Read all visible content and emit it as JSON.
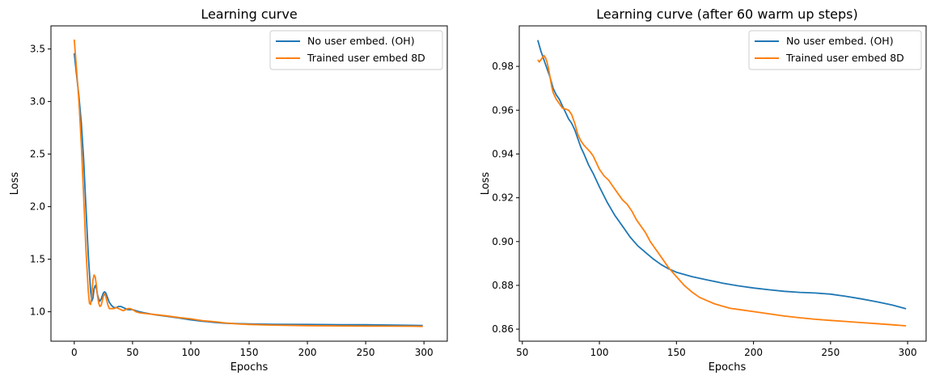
{
  "chart_data": [
    {
      "type": "line",
      "title": "Learning curve",
      "xlabel": "Epochs",
      "ylabel": "Loss",
      "xlim": [
        -20,
        320
      ],
      "ylim": [
        0.72,
        3.72
      ],
      "xticks": [
        0,
        50,
        100,
        150,
        200,
        250,
        300
      ],
      "yticks": [
        1.0,
        1.5,
        2.0,
        2.5,
        3.0,
        3.5
      ],
      "ytick_decimals": 1,
      "legend": "top-right",
      "grid": false,
      "series": [
        {
          "name": "No user embed. (OH)",
          "color": "#1f77b4",
          "points": [
            [
              0,
              3.46
            ],
            [
              2,
              3.25
            ],
            [
              4,
              3.05
            ],
            [
              6,
              2.8
            ],
            [
              8,
              2.45
            ],
            [
              10,
              2.0
            ],
            [
              12,
              1.55
            ],
            [
              14,
              1.2
            ],
            [
              15,
              1.1
            ],
            [
              16,
              1.13
            ],
            [
              17,
              1.22
            ],
            [
              18,
              1.25
            ],
            [
              19,
              1.22
            ],
            [
              20,
              1.16
            ],
            [
              21,
              1.12
            ],
            [
              22,
              1.1
            ],
            [
              23,
              1.12
            ],
            [
              24,
              1.15
            ],
            [
              25,
              1.18
            ],
            [
              26,
              1.19
            ],
            [
              27,
              1.18
            ],
            [
              28,
              1.15
            ],
            [
              29,
              1.12
            ],
            [
              30,
              1.09
            ],
            [
              32,
              1.06
            ],
            [
              34,
              1.04
            ],
            [
              36,
              1.04
            ],
            [
              38,
              1.05
            ],
            [
              40,
              1.05
            ],
            [
              42,
              1.04
            ],
            [
              44,
              1.03
            ],
            [
              46,
              1.02
            ],
            [
              48,
              1.02
            ],
            [
              50,
              1.02
            ],
            [
              53,
              1.01
            ],
            [
              56,
              1.0
            ],
            [
              60,
              0.99
            ],
            [
              70,
              0.97
            ],
            [
              80,
              0.955
            ],
            [
              90,
              0.94
            ],
            [
              100,
              0.923
            ],
            [
              110,
              0.91
            ],
            [
              120,
              0.899
            ],
            [
              130,
              0.891
            ],
            [
              140,
              0.887
            ],
            [
              150,
              0.884
            ],
            [
              170,
              0.881
            ],
            [
              200,
              0.879
            ],
            [
              230,
              0.877
            ],
            [
              250,
              0.876
            ],
            [
              270,
              0.874
            ],
            [
              290,
              0.871
            ],
            [
              299,
              0.869
            ]
          ]
        },
        {
          "name": "Trained user embed 8D",
          "color": "#ff7f0e",
          "points": [
            [
              0,
              3.59
            ],
            [
              2,
              3.3
            ],
            [
              4,
              3.0
            ],
            [
              6,
              2.6
            ],
            [
              8,
              2.1
            ],
            [
              10,
              1.6
            ],
            [
              12,
              1.2
            ],
            [
              13,
              1.08
            ],
            [
              14,
              1.07
            ],
            [
              15,
              1.15
            ],
            [
              16,
              1.3
            ],
            [
              17,
              1.35
            ],
            [
              18,
              1.33
            ],
            [
              19,
              1.25
            ],
            [
              20,
              1.15
            ],
            [
              21,
              1.08
            ],
            [
              22,
              1.05
            ],
            [
              23,
              1.06
            ],
            [
              24,
              1.1
            ],
            [
              25,
              1.15
            ],
            [
              26,
              1.17
            ],
            [
              27,
              1.15
            ],
            [
              28,
              1.1
            ],
            [
              29,
              1.06
            ],
            [
              30,
              1.03
            ],
            [
              32,
              1.03
            ],
            [
              34,
              1.03
            ],
            [
              36,
              1.04
            ],
            [
              38,
              1.03
            ],
            [
              40,
              1.02
            ],
            [
              42,
              1.01
            ],
            [
              44,
              1.02
            ],
            [
              46,
              1.03
            ],
            [
              48,
              1.03
            ],
            [
              50,
              1.02
            ],
            [
              53,
              1.0
            ],
            [
              56,
              0.99
            ],
            [
              60,
              0.985
            ],
            [
              70,
              0.972
            ],
            [
              80,
              0.96
            ],
            [
              90,
              0.945
            ],
            [
              100,
              0.932
            ],
            [
              110,
              0.915
            ],
            [
              120,
              0.905
            ],
            [
              130,
              0.893
            ],
            [
              140,
              0.885
            ],
            [
              150,
              0.879
            ],
            [
              170,
              0.873
            ],
            [
              200,
              0.868
            ],
            [
              230,
              0.865
            ],
            [
              250,
              0.864
            ],
            [
              270,
              0.863
            ],
            [
              290,
              0.862
            ],
            [
              299,
              0.861
            ]
          ]
        }
      ]
    },
    {
      "type": "line",
      "title": "Learning curve (after 60 warm up steps)",
      "xlabel": "Epochs",
      "ylabel": "Loss",
      "xlim": [
        48,
        312
      ],
      "ylim": [
        0.8545,
        0.9985
      ],
      "xticks": [
        50,
        100,
        150,
        200,
        250,
        300
      ],
      "yticks": [
        0.86,
        0.88,
        0.9,
        0.92,
        0.94,
        0.96,
        0.98
      ],
      "ytick_decimals": 2,
      "legend": "top-right",
      "grid": false,
      "series": [
        {
          "name": "No user embed. (OH)",
          "color": "#1f77b4",
          "points": [
            [
              60,
              0.992
            ],
            [
              62,
              0.987
            ],
            [
              64,
              0.983
            ],
            [
              66,
              0.979
            ],
            [
              68,
              0.975
            ],
            [
              70,
              0.97
            ],
            [
              72,
              0.967
            ],
            [
              74,
              0.965
            ],
            [
              76,
              0.962
            ],
            [
              78,
              0.959
            ],
            [
              80,
              0.956
            ],
            [
              82,
              0.954
            ],
            [
              84,
              0.951
            ],
            [
              86,
              0.947
            ],
            [
              88,
              0.943
            ],
            [
              90,
              0.94
            ],
            [
              93,
              0.935
            ],
            [
              96,
              0.931
            ],
            [
              100,
              0.925
            ],
            [
              105,
              0.918
            ],
            [
              110,
              0.912
            ],
            [
              115,
              0.907
            ],
            [
              120,
              0.902
            ],
            [
              125,
              0.898
            ],
            [
              130,
              0.895
            ],
            [
              135,
              0.892
            ],
            [
              140,
              0.8895
            ],
            [
              145,
              0.8875
            ],
            [
              150,
              0.886
            ],
            [
              160,
              0.884
            ],
            [
              170,
              0.8825
            ],
            [
              180,
              0.881
            ],
            [
              190,
              0.8798
            ],
            [
              200,
              0.8788
            ],
            [
              210,
              0.878
            ],
            [
              220,
              0.8773
            ],
            [
              230,
              0.8768
            ],
            [
              240,
              0.8765
            ],
            [
              250,
              0.876
            ],
            [
              260,
              0.875
            ],
            [
              270,
              0.8738
            ],
            [
              280,
              0.8725
            ],
            [
              290,
              0.871
            ],
            [
              299,
              0.8693
            ]
          ]
        },
        {
          "name": "Trained user embed 8D",
          "color": "#ff7f0e",
          "points": [
            [
              60,
              0.983
            ],
            [
              61,
              0.982
            ],
            [
              62,
              0.983
            ],
            [
              63,
              0.984
            ],
            [
              64,
              0.985
            ],
            [
              65,
              0.984
            ],
            [
              66,
              0.982
            ],
            [
              67,
              0.979
            ],
            [
              68,
              0.975
            ],
            [
              69,
              0.971
            ],
            [
              70,
              0.968
            ],
            [
              72,
              0.965
            ],
            [
              74,
              0.963
            ],
            [
              76,
              0.961
            ],
            [
              78,
              0.9605
            ],
            [
              80,
              0.96
            ],
            [
              82,
              0.958
            ],
            [
              84,
              0.954
            ],
            [
              86,
              0.949
            ],
            [
              88,
              0.946
            ],
            [
              90,
              0.944
            ],
            [
              92,
              0.9425
            ],
            [
              94,
              0.941
            ],
            [
              96,
              0.939
            ],
            [
              98,
              0.936
            ],
            [
              100,
              0.933
            ],
            [
              103,
              0.93
            ],
            [
              106,
              0.928
            ],
            [
              109,
              0.925
            ],
            [
              112,
              0.922
            ],
            [
              115,
              0.919
            ],
            [
              118,
              0.917
            ],
            [
              121,
              0.914
            ],
            [
              124,
              0.91
            ],
            [
              127,
              0.907
            ],
            [
              130,
              0.904
            ],
            [
              133,
              0.9
            ],
            [
              136,
              0.897
            ],
            [
              140,
              0.893
            ],
            [
              145,
              0.888
            ],
            [
              150,
              0.884
            ],
            [
              155,
              0.88
            ],
            [
              160,
              0.877
            ],
            [
              165,
              0.8745
            ],
            [
              170,
              0.873
            ],
            [
              175,
              0.8715
            ],
            [
              180,
              0.8705
            ],
            [
              185,
              0.8695
            ],
            [
              190,
              0.869
            ],
            [
              200,
              0.868
            ],
            [
              210,
              0.867
            ],
            [
              220,
              0.866
            ],
            [
              230,
              0.8652
            ],
            [
              240,
              0.8645
            ],
            [
              250,
              0.864
            ],
            [
              260,
              0.8635
            ],
            [
              270,
              0.863
            ],
            [
              280,
              0.8625
            ],
            [
              290,
              0.862
            ],
            [
              299,
              0.8615
            ]
          ]
        }
      ]
    }
  ]
}
